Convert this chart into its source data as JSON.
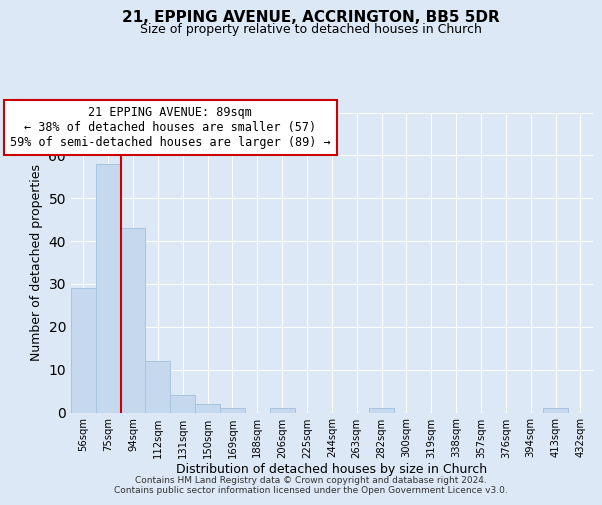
{
  "title": "21, EPPING AVENUE, ACCRINGTON, BB5 5DR",
  "subtitle": "Size of property relative to detached houses in Church",
  "xlabel": "Distribution of detached houses by size in Church",
  "ylabel": "Number of detached properties",
  "bar_labels": [
    "56sqm",
    "75sqm",
    "94sqm",
    "112sqm",
    "131sqm",
    "150sqm",
    "169sqm",
    "188sqm",
    "206sqm",
    "225sqm",
    "244sqm",
    "263sqm",
    "282sqm",
    "300sqm",
    "319sqm",
    "338sqm",
    "357sqm",
    "376sqm",
    "394sqm",
    "413sqm",
    "432sqm"
  ],
  "bar_values": [
    29,
    58,
    43,
    12,
    4,
    2,
    1,
    0,
    1,
    0,
    0,
    0,
    1,
    0,
    0,
    0,
    0,
    0,
    0,
    1,
    0
  ],
  "bar_color": "#c5d8ed",
  "bar_edge_color": "#a8c4de",
  "vline_x": 1.5,
  "vline_color": "#cc0000",
  "annotation_line1": "21 EPPING AVENUE: 89sqm",
  "annotation_line2": "← 38% of detached houses are smaller (57)",
  "annotation_line3": "59% of semi-detached houses are larger (89) →",
  "annotation_box_color": "#ffffff",
  "annotation_box_edge": "#cc0000",
  "ylim": [
    0,
    70
  ],
  "yticks": [
    0,
    10,
    20,
    30,
    40,
    50,
    60,
    70
  ],
  "footer_line1": "Contains HM Land Registry data © Crown copyright and database right 2024.",
  "footer_line2": "Contains public sector information licensed under the Open Government Licence v3.0.",
  "background_color": "#dce8f5",
  "plot_bg_color": "#dce8f5",
  "title_fontsize": 11,
  "subtitle_fontsize": 9
}
